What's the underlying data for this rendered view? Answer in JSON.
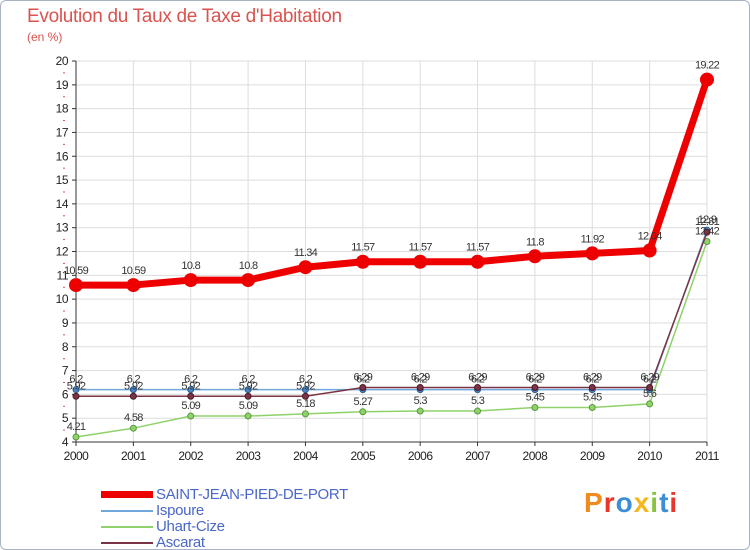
{
  "chart_data": {
    "type": "line",
    "title": "Evolution du Taux de Taxe d'Habitation",
    "subtitle": "(en %)",
    "xlabel": "",
    "ylabel": "",
    "x": [
      "2000",
      "2001",
      "2002",
      "2003",
      "2004",
      "2005",
      "2006",
      "2007",
      "2008",
      "2009",
      "2010",
      "2011"
    ],
    "ylim": [
      4,
      20
    ],
    "yticks": [
      "4",
      "5",
      "6",
      "7",
      "8",
      "9",
      "10",
      "11",
      "12",
      "13",
      "14",
      "15",
      "16",
      "17",
      "18",
      "19",
      "20"
    ],
    "grid": true,
    "series": [
      {
        "name": "SAINT-JEAN-PIED-DE-PORT",
        "color": "#ee0000",
        "values": [
          10.59,
          10.59,
          10.8,
          10.8,
          11.34,
          11.57,
          11.57,
          11.57,
          11.8,
          11.92,
          12.04,
          19.22
        ],
        "labels": [
          "10.59",
          "10.59",
          "10.8",
          "10.8",
          "11.34",
          "11.57",
          "11.57",
          "11.57",
          "11.8",
          "11.92",
          "12.04",
          "19.22"
        ]
      },
      {
        "name": "Ispoure",
        "color": "#6fa8dc",
        "values": [
          6.2,
          6.2,
          6.2,
          6.2,
          6.2,
          6.2,
          6.2,
          6.2,
          6.2,
          6.2,
          6.2,
          12.9
        ],
        "labels": [
          "6.2",
          "6.2",
          "6.2",
          "6.2",
          "6.2",
          "6.2",
          "6.2",
          "6.2",
          "6.2",
          "6.2",
          "6.2",
          "12.9"
        ]
      },
      {
        "name": "Uhart-Cize",
        "color": "#8fd16a",
        "values": [
          4.21,
          4.58,
          5.09,
          5.09,
          5.18,
          5.27,
          5.3,
          5.3,
          5.45,
          5.45,
          5.6,
          12.42
        ],
        "labels": [
          "4.21",
          "4.58",
          "5.09",
          "5.09",
          "5.18",
          "5.27",
          "5.3",
          "5.3",
          "5.45",
          "5.45",
          "5.6",
          "12.42"
        ]
      },
      {
        "name": "Ascarat",
        "color": "#7b3446",
        "values": [
          5.92,
          5.92,
          5.92,
          5.92,
          5.92,
          6.29,
          6.29,
          6.29,
          6.29,
          6.29,
          6.29,
          12.81
        ],
        "labels": [
          "5.92",
          "5.92",
          "5.92",
          "5.92",
          "5.92",
          "6.29",
          "6.29",
          "6.29",
          "6.29",
          "6.29",
          "6.29",
          "12.81"
        ]
      }
    ]
  },
  "logo": {
    "text": "Proxiti",
    "colors": [
      "#f08a1c",
      "#e8362a",
      "#3c8ed6",
      "#f5b71c",
      "#88c43f",
      "#3c8ed6",
      "#e8362a"
    ]
  }
}
